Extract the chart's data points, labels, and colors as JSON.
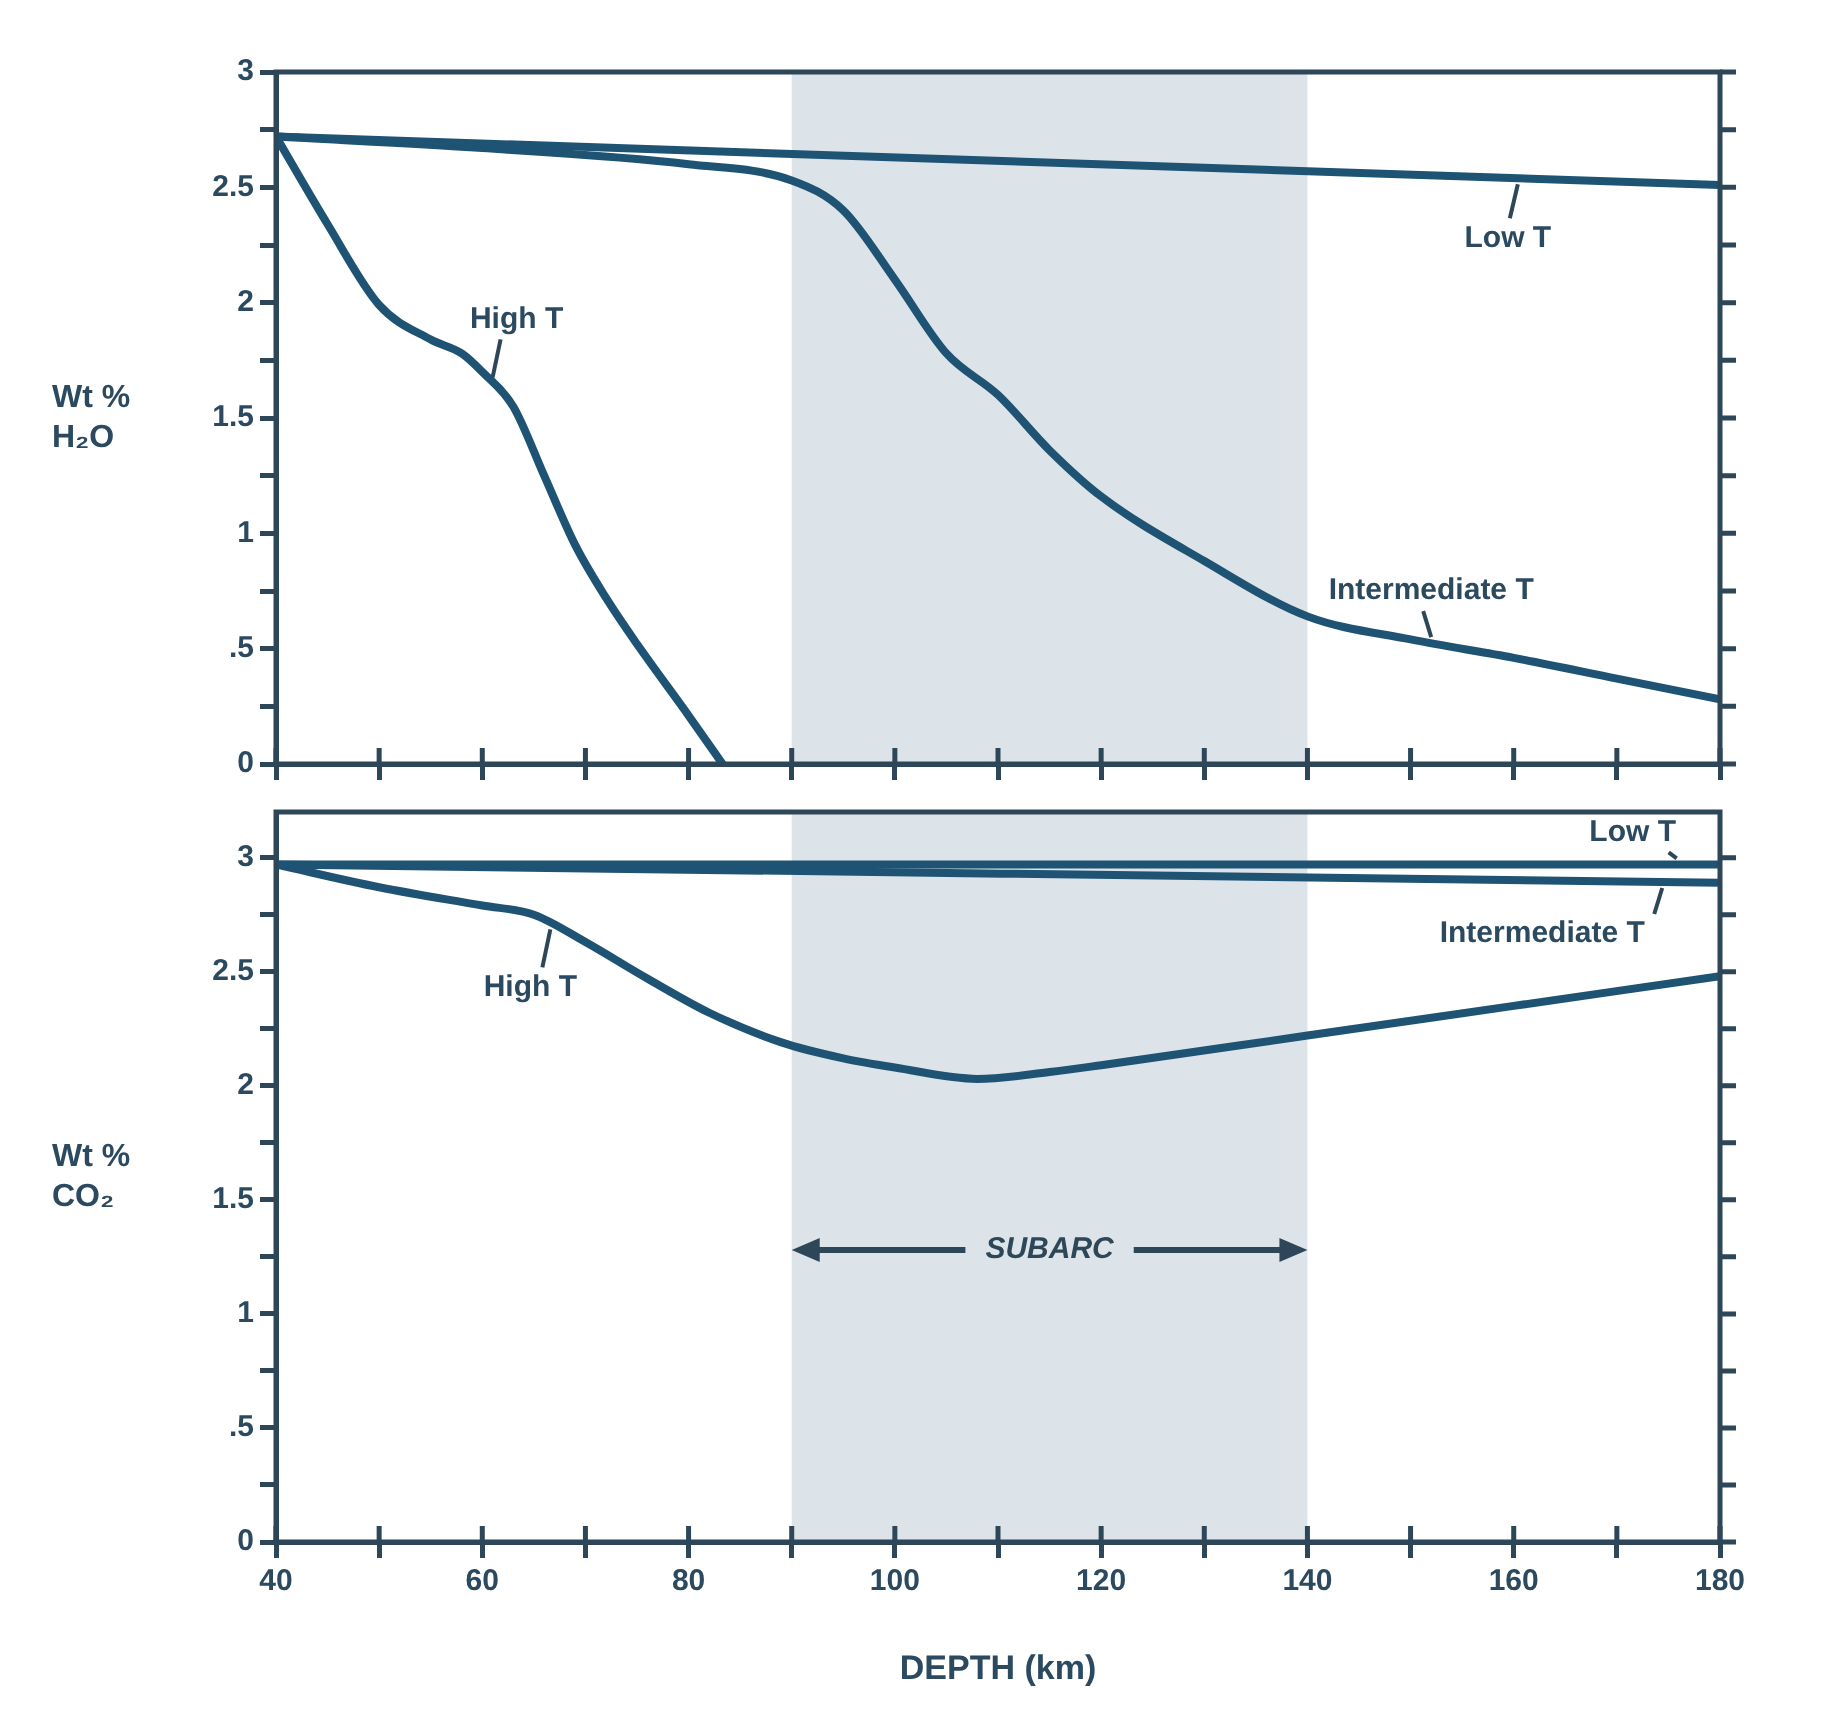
{
  "chart_data": [
    {
      "type": "line",
      "ylabel": "Wt %\nH₂O",
      "xlim": [
        40,
        180
      ],
      "xticks": [
        40,
        50,
        60,
        70,
        80,
        90,
        100,
        110,
        120,
        130,
        140,
        150,
        160,
        170,
        180
      ],
      "ylim": [
        0,
        3
      ],
      "yticks": [
        0,
        {
          "value": 0.25,
          "label": null
        },
        {
          "value": 0.5,
          "label": ".5"
        },
        {
          "value": 0.75,
          "label": null
        },
        1,
        {
          "value": 1.25,
          "label": null
        },
        1.5,
        {
          "value": 1.75,
          "label": null
        },
        2,
        {
          "value": 2.25,
          "label": null
        },
        2.5,
        {
          "value": 2.75,
          "label": null
        },
        3
      ],
      "tick_labels": "y",
      "grid": false,
      "marker": "none",
      "bands": [
        {
          "axis": "x",
          "from": 90,
          "to": 140,
          "color": "#dde4e9"
        }
      ],
      "series": [
        {
          "name": "Low T",
          "color": "#1f5374",
          "x": [
            40,
            180
          ],
          "values": [
            2.72,
            2.51
          ]
        },
        {
          "name": "Intermediate T",
          "color": "#1f5374",
          "x": [
            40,
            60,
            80,
            90,
            95,
            100,
            105,
            110,
            115,
            120,
            130,
            140,
            150,
            160,
            170,
            180
          ],
          "values": [
            2.72,
            2.67,
            2.6,
            2.53,
            2.4,
            2.1,
            1.78,
            1.6,
            1.36,
            1.16,
            0.88,
            0.64,
            0.54,
            0.46,
            0.37,
            0.28
          ]
        },
        {
          "name": "High T",
          "color": "#1f5374",
          "x": [
            40,
            45,
            50,
            55,
            58,
            60,
            63,
            66,
            69,
            72,
            75,
            80,
            83.3
          ],
          "values": [
            2.72,
            2.34,
            1.99,
            1.84,
            1.78,
            1.7,
            1.55,
            1.25,
            0.95,
            0.72,
            0.52,
            0.21,
            0
          ]
        }
      ]
    },
    {
      "type": "line",
      "ylabel": "Wt %\nCO₂",
      "xlabel": "DEPTH (km)",
      "xlim": [
        40,
        180
      ],
      "xticks": [
        40,
        {
          "value": 50,
          "label": null
        },
        60,
        {
          "value": 70,
          "label": null
        },
        80,
        {
          "value": 90,
          "label": null
        },
        100,
        {
          "value": 110,
          "label": null
        },
        120,
        {
          "value": 130,
          "label": null
        },
        140,
        {
          "value": 150,
          "label": null
        },
        160,
        {
          "value": 170,
          "label": null
        },
        180
      ],
      "ylim": [
        0,
        3.2
      ],
      "yticks": [
        0,
        {
          "value": 0.25,
          "label": null
        },
        {
          "value": 0.5,
          "label": ".5"
        },
        {
          "value": 0.75,
          "label": null
        },
        1,
        {
          "value": 1.25,
          "label": null
        },
        1.5,
        {
          "value": 1.75,
          "label": null
        },
        2,
        {
          "value": 2.25,
          "label": null
        },
        2.5,
        {
          "value": 2.75,
          "label": null
        },
        3
      ],
      "grid": false,
      "marker": "none",
      "bands": [
        {
          "axis": "x",
          "from": 90,
          "to": 140,
          "label": "SUBARC",
          "color": "#dde4e9"
        }
      ],
      "series": [
        {
          "name": "Low T",
          "color": "#1f5374",
          "x": [
            40,
            180
          ],
          "values": [
            2.97,
            2.97
          ]
        },
        {
          "name": "Intermediate T",
          "color": "#1f5374",
          "x": [
            40,
            180
          ],
          "values": [
            2.97,
            2.89
          ]
        },
        {
          "name": "High T",
          "color": "#1f5374",
          "x": [
            40,
            50,
            60,
            65,
            70,
            76,
            82,
            89,
            95,
            100,
            108,
            115,
            120,
            140,
            160,
            180
          ],
          "values": [
            2.97,
            2.87,
            2.79,
            2.75,
            2.63,
            2.47,
            2.32,
            2.19,
            2.12,
            2.08,
            2.03,
            2.06,
            2.09,
            2.22,
            2.35,
            2.48
          ]
        }
      ]
    }
  ]
}
